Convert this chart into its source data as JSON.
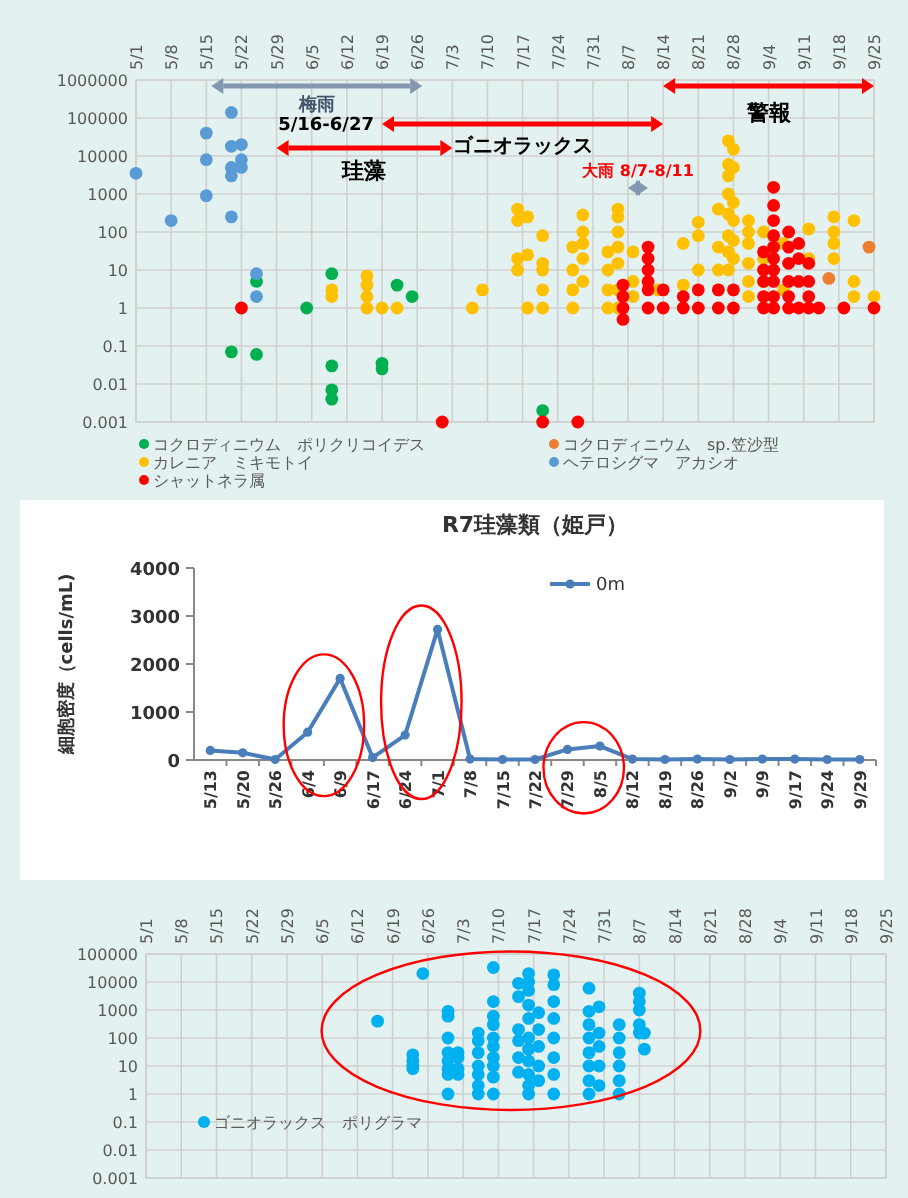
{
  "chart_data": [
    {
      "type": "scatter",
      "log": "y",
      "marker": "circle",
      "grid": true,
      "legend": "bottom",
      "xlim": [
        "--05-01",
        "--09-25"
      ],
      "xticks": [
        {
          "value": "--05-01",
          "label": "5/1"
        },
        {
          "value": "--05-08",
          "label": "5/8"
        },
        {
          "value": "--05-15",
          "label": "5/15"
        },
        {
          "value": "--05-22",
          "label": "5/22"
        },
        {
          "value": "--05-29",
          "label": "5/29"
        },
        {
          "value": "--06-05",
          "label": "6/5"
        },
        {
          "value": "--06-12",
          "label": "6/12"
        },
        {
          "value": "--06-19",
          "label": "6/19"
        },
        {
          "value": "--06-26",
          "label": "6/26"
        },
        {
          "value": "--07-03",
          "label": "7/3"
        },
        {
          "value": "--07-10",
          "label": "7/10"
        },
        {
          "value": "--07-17",
          "label": "7/17"
        },
        {
          "value": "--07-24",
          "label": "7/24"
        },
        {
          "value": "--07-31",
          "label": "7/31"
        },
        {
          "value": "--08-07",
          "label": "8/7"
        },
        {
          "value": "--08-14",
          "label": "8/14"
        },
        {
          "value": "--08-21",
          "label": "8/21"
        },
        {
          "value": "--08-28",
          "label": "8/28"
        },
        {
          "value": "--09-04",
          "label": "9/4"
        },
        {
          "value": "--09-11",
          "label": "9/11"
        },
        {
          "value": "--09-18",
          "label": "9/18"
        },
        {
          "value": "--09-25",
          "label": "9/25"
        }
      ],
      "ylim": [
        0.001,
        1000000
      ],
      "yticks": [
        0.001,
        0.01,
        0.1,
        1,
        10,
        100,
        1000,
        10000,
        100000,
        1000000
      ],
      "series": [
        {
          "name": "コクロディニウム　ポリクリコイデス",
          "color": "#00b050",
          "x": [
            "--05-20",
            "--05-25",
            "--05-25",
            "--06-04",
            "--06-09",
            "--06-09",
            "--06-09",
            "--06-09",
            "--06-19",
            "--06-19",
            "--06-22",
            "--06-25",
            "--07-21"
          ],
          "values": [
            0.07,
            5,
            0.06,
            1,
            8,
            0.03,
            0.007,
            0.004,
            0.035,
            0.025,
            4,
            2,
            0.002
          ]
        },
        {
          "name": "コクロディニウム　sp.笠沙型",
          "color": "#ed7d31",
          "x": [
            "--09-16",
            "--09-24"
          ],
          "values": [
            6,
            40
          ]
        },
        {
          "name": "カレニア　ミキモトイ",
          "color": "#ffc000",
          "x": [
            "--06-09",
            "--06-09",
            "--06-16",
            "--06-16",
            "--06-16",
            "--06-16",
            "--06-19",
            "--06-22",
            "--07-07",
            "--07-09",
            "--07-16",
            "--07-16",
            "--07-16",
            "--07-16",
            "--07-18",
            "--07-18",
            "--07-18",
            "--07-21",
            "--07-21",
            "--07-21",
            "--07-21",
            "--07-21",
            "--07-27",
            "--07-27",
            "--07-27",
            "--07-27",
            "--07-29",
            "--07-29",
            "--07-29",
            "--07-29",
            "--07-29",
            "--08-03",
            "--08-03",
            "--08-03",
            "--08-03",
            "--08-05",
            "--08-05",
            "--08-05",
            "--08-05",
            "--08-05",
            "--08-05",
            "--08-05",
            "--08-08",
            "--08-08",
            "--08-08",
            "--08-13",
            "--08-18",
            "--08-18",
            "--08-21",
            "--08-21",
            "--08-21",
            "--08-25",
            "--08-25",
            "--08-25",
            "--08-25",
            "--08-27",
            "--08-27",
            "--08-27",
            "--08-27",
            "--08-27",
            "--08-27",
            "--08-27",
            "--08-27",
            "--08-28",
            "--08-28",
            "--08-28",
            "--08-28",
            "--08-28",
            "--08-28",
            "--08-31",
            "--08-31",
            "--08-31",
            "--08-31",
            "--08-31",
            "--08-31",
            "--09-03",
            "--09-03",
            "--09-03",
            "--09-07",
            "--09-07",
            "--09-12",
            "--09-12",
            "--09-17",
            "--09-17",
            "--09-17",
            "--09-17",
            "--09-21",
            "--09-21",
            "--09-21",
            "--09-25"
          ],
          "values": [
            3,
            2,
            7,
            4,
            2,
            1,
            1,
            1,
            1,
            3,
            400,
            200,
            20,
            10,
            250,
            25,
            1,
            80,
            15,
            10,
            3,
            1,
            40,
            10,
            3,
            1,
            280,
            100,
            50,
            20,
            5,
            30,
            10,
            3,
            1,
            400,
            250,
            100,
            40,
            15,
            3,
            1,
            30,
            5,
            2,
            3,
            50,
            4,
            180,
            80,
            10,
            400,
            40,
            10,
            3,
            25000,
            6000,
            3000,
            1000,
            300,
            80,
            30,
            10,
            15000,
            5000,
            600,
            200,
            60,
            20,
            200,
            100,
            50,
            15,
            5,
            2,
            100,
            20,
            5,
            50,
            3,
            120,
            20,
            250,
            100,
            50,
            20,
            200,
            5,
            2,
            2
          ]
        },
        {
          "name": "ヘテロシグマ　アカシオ",
          "color": "#5b9bd5",
          "x": [
            "--05-01",
            "--05-08",
            "--05-15",
            "--05-15",
            "--05-15",
            "--05-20",
            "--05-20",
            "--05-20",
            "--05-20",
            "--05-20",
            "--05-22",
            "--05-22",
            "--05-22",
            "--05-25",
            "--05-25"
          ],
          "values": [
            3500,
            200,
            40000,
            8000,
            900,
            140000,
            18000,
            5000,
            3000,
            250,
            20000,
            8000,
            5000,
            8,
            2
          ]
        },
        {
          "name": "シャットネラ属",
          "color": "#ff0000",
          "x": [
            "--05-22",
            "--07-01",
            "--07-21",
            "--07-28",
            "--08-06",
            "--08-06",
            "--08-06",
            "--08-06",
            "--08-11",
            "--08-11",
            "--08-11",
            "--08-11",
            "--08-11",
            "--08-11",
            "--08-14",
            "--08-14",
            "--08-18",
            "--08-18",
            "--08-21",
            "--08-21",
            "--08-25",
            "--08-25",
            "--08-28",
            "--08-28",
            "--09-03",
            "--09-03",
            "--09-03",
            "--09-03",
            "--09-03",
            "--09-05",
            "--09-05",
            "--09-05",
            "--09-05",
            "--09-05",
            "--09-05",
            "--09-05",
            "--09-05",
            "--09-05",
            "--09-05",
            "--09-08",
            "--09-08",
            "--09-08",
            "--09-08",
            "--09-08",
            "--09-08",
            "--09-10",
            "--09-10",
            "--09-10",
            "--09-10",
            "--09-12",
            "--09-12",
            "--09-12",
            "--09-12",
            "--09-14",
            "--09-19",
            "--09-25"
          ],
          "values": [
            1,
            0.001,
            0.001,
            0.001,
            4,
            2,
            1,
            0.5,
            40,
            20,
            10,
            5,
            3,
            1,
            3,
            1,
            2,
            1,
            3,
            1,
            3,
            1,
            3,
            1,
            30,
            10,
            5,
            2,
            1,
            1500,
            500,
            200,
            80,
            40,
            20,
            10,
            5,
            2,
            1,
            100,
            40,
            15,
            5,
            2,
            1,
            50,
            20,
            5,
            1,
            15,
            5,
            2,
            1,
            1,
            1,
            1
          ]
        }
      ],
      "annotations": [
        "梅雨",
        "5/16-6/27",
        "ゴニオラックス",
        "珪藻",
        "警報",
        "大雨 8/7-8/11"
      ]
    },
    {
      "type": "line",
      "title": "R7珪藻類（姫戸）",
      "ylabel": "細胞密度（cells/mL)",
      "marker": "circle",
      "legend": "top",
      "categories": [
        "5/13",
        "5/20",
        "5/26",
        "6/4",
        "6/9",
        "6/17",
        "6/24",
        "7/1",
        "7/8",
        "7/15",
        "7/22",
        "7/29",
        "8/5",
        "8/12",
        "8/19",
        "8/26",
        "9/2",
        "9/9",
        "9/17",
        "9/24",
        "9/29"
      ],
      "ylim": [
        0,
        4000
      ],
      "yticks": [
        0,
        1000,
        2000,
        3000,
        4000
      ],
      "series": [
        {
          "name": "0m",
          "color": "#4a7ebb",
          "values": [
            200,
            150,
            10,
            580,
            1700,
            50,
            520,
            2720,
            20,
            10,
            10,
            220,
            290,
            20,
            10,
            20,
            10,
            20,
            20,
            10,
            10
          ]
        }
      ]
    },
    {
      "type": "scatter",
      "log": "y",
      "marker": "circle",
      "grid": true,
      "legend": "bottom left",
      "xlim": [
        "--05-01",
        "--09-25"
      ],
      "xticks": [
        {
          "value": "--05-01",
          "label": "5/1"
        },
        {
          "value": "--05-08",
          "label": "5/8"
        },
        {
          "value": "--05-15",
          "label": "5/15"
        },
        {
          "value": "--05-22",
          "label": "5/22"
        },
        {
          "value": "--05-29",
          "label": "5/29"
        },
        {
          "value": "--06-05",
          "label": "6/5"
        },
        {
          "value": "--06-12",
          "label": "6/12"
        },
        {
          "value": "--06-19",
          "label": "6/19"
        },
        {
          "value": "--06-26",
          "label": "6/26"
        },
        {
          "value": "--07-03",
          "label": "7/3"
        },
        {
          "value": "--07-10",
          "label": "7/10"
        },
        {
          "value": "--07-17",
          "label": "7/17"
        },
        {
          "value": "--07-24",
          "label": "7/24"
        },
        {
          "value": "--07-31",
          "label": "7/31"
        },
        {
          "value": "--08-07",
          "label": "8/7"
        },
        {
          "value": "--08-14",
          "label": "8/14"
        },
        {
          "value": "--08-21",
          "label": "8/21"
        },
        {
          "value": "--08-28",
          "label": "8/28"
        },
        {
          "value": "--09-04",
          "label": "9/4"
        },
        {
          "value": "--09-11",
          "label": "9/11"
        },
        {
          "value": "--09-18",
          "label": "9/18"
        },
        {
          "value": "--09-25",
          "label": "9/25"
        }
      ],
      "ylim": [
        0.001,
        100000
      ],
      "yticks": [
        0.001,
        0.01,
        0.1,
        1,
        10,
        100,
        1000,
        10000,
        100000
      ],
      "series": [
        {
          "name": "ゴニオラックス　ポリグラマ",
          "color": "#00b0f0",
          "x": [
            "--06-16",
            "--06-23",
            "--06-23",
            "--06-23",
            "--06-23",
            "--06-25",
            "--06-30",
            "--06-30",
            "--06-30",
            "--06-30",
            "--06-30",
            "--06-30",
            "--06-30",
            "--06-30",
            "--07-02",
            "--07-02",
            "--07-02",
            "--07-02",
            "--07-06",
            "--07-06",
            "--07-06",
            "--07-06",
            "--07-06",
            "--07-06",
            "--07-06",
            "--07-09",
            "--07-09",
            "--07-09",
            "--07-09",
            "--07-09",
            "--07-09",
            "--07-09",
            "--07-09",
            "--07-09",
            "--07-09",
            "--07-14",
            "--07-14",
            "--07-14",
            "--07-14",
            "--07-14",
            "--07-14",
            "--07-16",
            "--07-16",
            "--07-16",
            "--07-16",
            "--07-16",
            "--07-16",
            "--07-16",
            "--07-16",
            "--07-16",
            "--07-16",
            "--07-16",
            "--07-18",
            "--07-18",
            "--07-18",
            "--07-18",
            "--07-18",
            "--07-21",
            "--07-21",
            "--07-21",
            "--07-21",
            "--07-21",
            "--07-21",
            "--07-21",
            "--07-21",
            "--07-28",
            "--07-28",
            "--07-28",
            "--07-28",
            "--07-28",
            "--07-28",
            "--07-28",
            "--07-28",
            "--07-30",
            "--07-30",
            "--07-30",
            "--07-30",
            "--07-30",
            "--08-03",
            "--08-03",
            "--08-03",
            "--08-03",
            "--08-03",
            "--08-03",
            "--08-07",
            "--08-07",
            "--08-07",
            "--08-07",
            "--08-07",
            "--08-08",
            "--08-08"
          ],
          "values": [
            400,
            25,
            15,
            10,
            8,
            20000,
            900,
            600,
            100,
            30,
            15,
            8,
            5,
            1,
            30,
            20,
            8,
            5,
            150,
            80,
            30,
            10,
            5,
            2,
            1,
            33000,
            2000,
            600,
            300,
            100,
            50,
            20,
            10,
            4,
            1,
            9000,
            3000,
            200,
            80,
            20,
            6,
            20000,
            10000,
            5000,
            1500,
            500,
            100,
            40,
            15,
            5,
            2,
            1,
            800,
            200,
            50,
            10,
            3,
            18000,
            8000,
            2000,
            500,
            100,
            20,
            5,
            1,
            6000,
            900,
            300,
            100,
            30,
            10,
            3,
            1,
            1300,
            150,
            50,
            10,
            2,
            300,
            100,
            30,
            10,
            3,
            1,
            4000,
            2000,
            1000,
            300,
            150,
            150,
            40
          ]
        }
      ]
    }
  ]
}
